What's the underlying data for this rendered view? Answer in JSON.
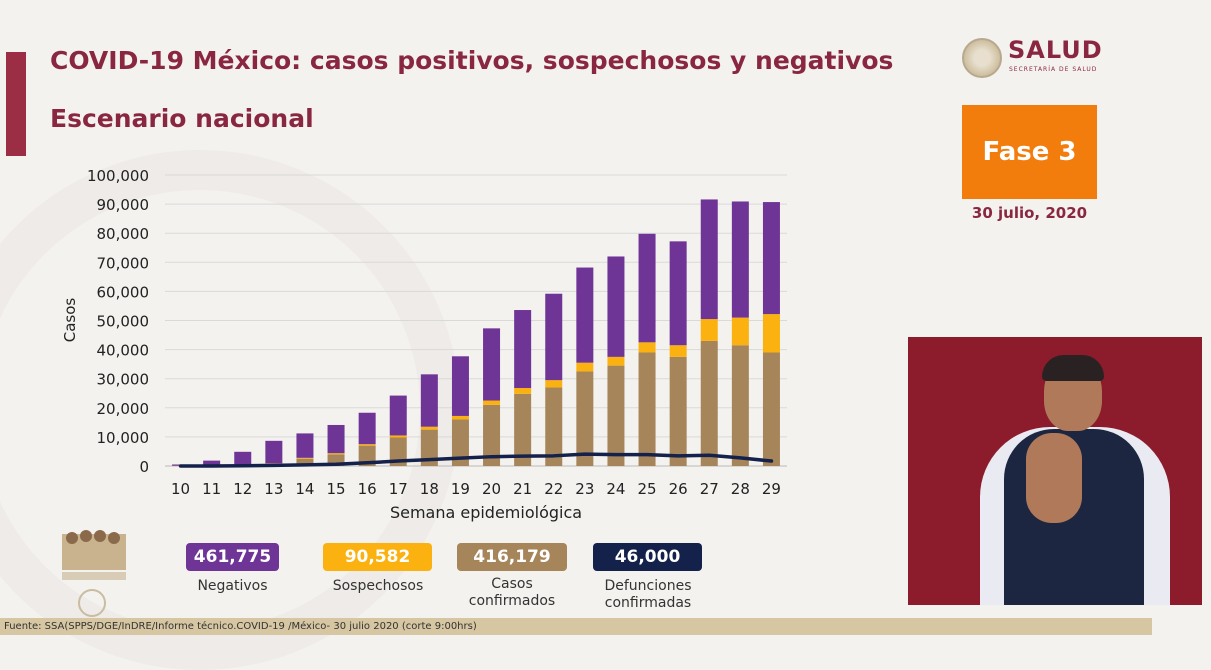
{
  "header": {
    "title": "COVID-19 México: casos positivos, sospechosos y negativos",
    "subtitle": "Escenario nacional"
  },
  "logo": {
    "name": "SALUD",
    "sub": "SECRETARÍA DE SALUD"
  },
  "phase": {
    "label": "Fase 3",
    "date": "30 julio, 2020",
    "color": "#f27d0c"
  },
  "summary": [
    {
      "value": "461,775",
      "label": "Negativos",
      "color": "#6f3596"
    },
    {
      "value": "90,582",
      "label": "Sospechosos",
      "color": "#fbb10f"
    },
    {
      "value": "416,179",
      "label": "Casos confirmados",
      "color": "#a6855a"
    },
    {
      "value": "46,000",
      "label": "Defunciones confirmadas",
      "color": "#14214a"
    }
  ],
  "footer": {
    "source": "Fuente: SSA(SPPS/DGE/InDRE/Informe técnico.COVID-19 /México- 30 julio 2020 (corte 9:00hrs)"
  },
  "chart_data": {
    "type": "bar",
    "stacked": true,
    "xlabel": "Semana epidemiológica",
    "ylabel": "Casos",
    "ylim": [
      0,
      100000
    ],
    "yticks": [
      "0",
      "10,000",
      "20,000",
      "30,000",
      "40,000",
      "50,000",
      "60,000",
      "70,000",
      "80,000",
      "90,000",
      "100,000"
    ],
    "categories": [
      "10",
      "11",
      "12",
      "13",
      "14",
      "15",
      "16",
      "17",
      "18",
      "19",
      "20",
      "21",
      "22",
      "23",
      "24",
      "25",
      "26",
      "27",
      "28",
      "29"
    ],
    "series": [
      {
        "key": "confirmados",
        "color": "#a6855a",
        "values": [
          100,
          300,
          500,
          800,
          2500,
          4000,
          7000,
          9800,
          12500,
          16000,
          21000,
          24800,
          27000,
          32500,
          34500,
          39000,
          37500,
          43000,
          41500,
          39000
        ]
      },
      {
        "key": "sospechosos",
        "color": "#fbb10f",
        "values": [
          20,
          50,
          80,
          150,
          300,
          400,
          500,
          700,
          1000,
          1200,
          1500,
          2000,
          2500,
          3000,
          3000,
          3500,
          4000,
          7500,
          9500,
          13200
        ]
      },
      {
        "key": "negativos",
        "color": "#6f3596",
        "values": [
          400,
          1500,
          4300,
          7700,
          8400,
          9700,
          10800,
          13700,
          18000,
          20500,
          24800,
          26800,
          29700,
          32700,
          34500,
          37300,
          35700,
          41100,
          39900,
          38500
        ]
      }
    ],
    "line": {
      "key": "defunciones",
      "color": "#14214a",
      "values": [
        0,
        20,
        100,
        200,
        400,
        600,
        1100,
        1700,
        2200,
        2700,
        3200,
        3400,
        3500,
        4100,
        3900,
        3900,
        3500,
        3700,
        2800,
        1700
      ]
    },
    "grid": true
  }
}
